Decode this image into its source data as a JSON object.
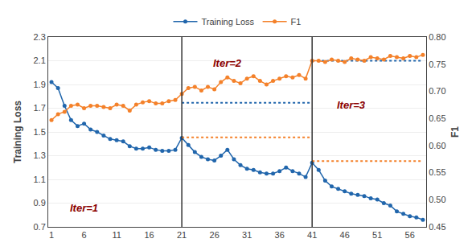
{
  "chart_data": {
    "type": "line",
    "ylabel": "Training Loss",
    "y2label": "F1",
    "x": [
      1,
      2,
      3,
      4,
      5,
      6,
      7,
      8,
      9,
      10,
      11,
      12,
      13,
      14,
      15,
      16,
      17,
      18,
      19,
      20,
      21,
      22,
      23,
      24,
      25,
      26,
      27,
      28,
      29,
      30,
      31,
      32,
      33,
      34,
      35,
      36,
      37,
      38,
      39,
      40,
      41,
      42,
      43,
      44,
      45,
      46,
      47,
      48,
      49,
      50,
      51,
      52,
      53,
      54,
      55,
      56,
      57,
      58
    ],
    "series": [
      {
        "name": "Training Loss",
        "color": "#2166ac",
        "axis": "y",
        "marker": "circle",
        "line_style": "solid",
        "values": [
          1.92,
          1.87,
          1.72,
          1.6,
          1.55,
          1.57,
          1.52,
          1.5,
          1.47,
          1.44,
          1.43,
          1.42,
          1.38,
          1.36,
          1.36,
          1.37,
          1.35,
          1.34,
          1.34,
          1.35,
          1.45,
          1.39,
          1.33,
          1.29,
          1.27,
          1.26,
          1.3,
          1.35,
          1.27,
          1.22,
          1.19,
          1.18,
          1.16,
          1.15,
          1.15,
          1.17,
          1.2,
          1.17,
          1.15,
          1.12,
          1.24,
          1.18,
          1.09,
          1.04,
          1.02,
          1.0,
          0.98,
          0.97,
          0.96,
          0.94,
          0.93,
          0.9,
          0.88,
          0.83,
          0.81,
          0.79,
          0.78,
          0.76
        ]
      },
      {
        "name": "F1",
        "color": "#f4812a",
        "axis": "y2",
        "marker": "circle",
        "line_style": "solid",
        "values": [
          0.646875,
          0.6578125,
          0.6621875,
          0.673125,
          0.6753125,
          0.66875,
          0.673125,
          0.673125,
          0.6709375,
          0.66875,
          0.6753125,
          0.673125,
          0.664375,
          0.6753125,
          0.6796875,
          0.681875,
          0.6775,
          0.6775,
          0.681875,
          0.6840625,
          0.695,
          0.7059375,
          0.708125,
          0.7015625,
          0.708125,
          0.70375,
          0.716875,
          0.725625,
          0.7190625,
          0.7146875,
          0.7234375,
          0.7278125,
          0.7190625,
          0.7125,
          0.7190625,
          0.7234375,
          0.7278125,
          0.725625,
          0.73,
          0.7234375,
          0.75625,
          0.75625,
          0.7540625,
          0.7584375,
          0.75625,
          0.7540625,
          0.760625,
          0.7584375,
          0.75625,
          0.7628125,
          0.760625,
          0.7584375,
          0.765,
          0.7628125,
          0.760625,
          0.765,
          0.7628125,
          0.7671875
        ]
      }
    ],
    "vlines": [
      {
        "x": 21,
        "color": "#333333"
      },
      {
        "x": 41,
        "color": "#333333"
      }
    ],
    "hlines": [
      {
        "y": 1.745,
        "x": [
          21,
          41
        ],
        "color": "#2166ac",
        "line_style": "dotted",
        "axis": "y"
      },
      {
        "y": 2.1,
        "x": [
          41,
          58
        ],
        "color": "#2166ac",
        "line_style": "dotted",
        "axis": "y"
      },
      {
        "y": 1.455,
        "x": [
          21,
          41
        ],
        "color": "#f4812a",
        "line_style": "dotted",
        "axis": "y"
      },
      {
        "y": 1.255,
        "x": [
          41,
          58
        ],
        "color": "#f4812a",
        "line_style": "dotted",
        "axis": "y"
      }
    ],
    "annotations": [
      {
        "text": "Iter=1",
        "x": 6,
        "y": 0.86,
        "color": "#8b0000"
      },
      {
        "text": "Iter=2",
        "x": 28,
        "y": 2.08,
        "color": "#8b0000"
      },
      {
        "text": "Iter=3",
        "x": 47,
        "y": 1.73,
        "color": "#8b0000"
      }
    ],
    "xlim": [
      0.5,
      58.5
    ],
    "xticks": [
      1,
      6,
      11,
      16,
      21,
      26,
      31,
      36,
      41,
      46,
      51,
      56
    ],
    "ylim": [
      0.7,
      2.3
    ],
    "yticks": [
      0.7,
      0.9,
      1.1,
      1.3,
      1.5,
      1.7,
      1.9,
      2.1,
      2.3
    ],
    "y2lim": [
      0.45,
      0.8
    ],
    "y2ticks": [
      0.45,
      {
        "value": 0.5,
        "label": "0.50"
      },
      0.55,
      {
        "value": 0.6,
        "label": "0.60"
      },
      0.65,
      {
        "value": 0.7,
        "label": "0.70"
      },
      0.75,
      {
        "value": 0.8,
        "label": "0.80"
      }
    ],
    "grid": "y",
    "legend": "top"
  }
}
